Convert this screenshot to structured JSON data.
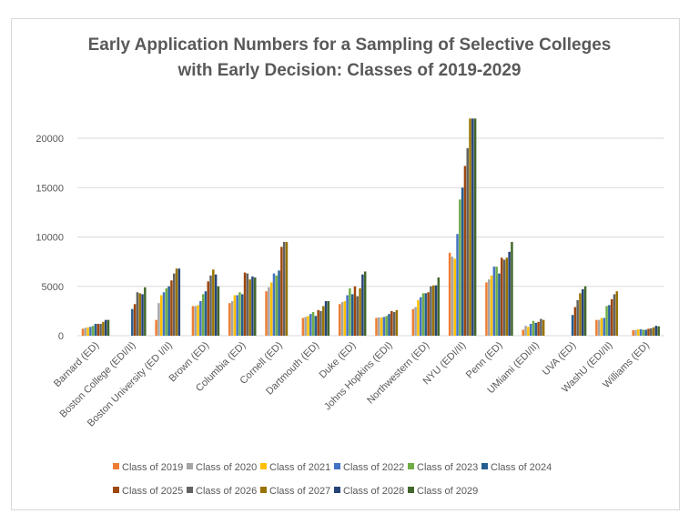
{
  "chart_data": {
    "type": "bar",
    "title_line1": "Early Application Numbers for a Sampling of Selective Colleges",
    "title_line2": "with Early Decision: Classes of 2019-2029",
    "xlabel": "",
    "ylabel": "",
    "ylim": [
      0,
      22000
    ],
    "yticks": [
      0,
      5000,
      10000,
      15000,
      20000
    ],
    "grid": true,
    "legend_position": "bottom",
    "categories": [
      "Barnard (ED)",
      "Boston College (EDI/II)",
      "Boston University (ED I/II)",
      "Brown (ED)",
      "Columbia (ED)",
      "Cornell (ED)",
      "Dartmouth (ED)",
      "Duke (ED)",
      "Johns Hopkins (EDI)",
      "Northwestern (ED)",
      "NYU (EDI/II)",
      "Penn (ED)",
      "UMiami (EDI/II)",
      "UVA (ED)",
      "WashU (EDI/II)",
      "Williams (ED)"
    ],
    "series": [
      {
        "name": "Class of 2019",
        "color": "#ED7D31",
        "values": [
          700,
          null,
          1600,
          3000,
          3300,
          4500,
          1800,
          3200,
          1800,
          2700,
          8400,
          5400,
          600,
          null,
          1600,
          560
        ]
      },
      {
        "name": "Class of 2020",
        "color": "#A5A5A5",
        "values": [
          800,
          null,
          3300,
          3000,
          3500,
          4900,
          1900,
          3400,
          1850,
          2900,
          8000,
          5700,
          1000,
          null,
          1600,
          580
        ]
      },
      {
        "name": "Class of 2021",
        "color": "#FFC000",
        "values": [
          850,
          null,
          4100,
          3100,
          4100,
          5400,
          2000,
          3500,
          1850,
          3600,
          7800,
          6100,
          900,
          null,
          1800,
          650
        ]
      },
      {
        "name": "Class of 2022",
        "color": "#4472C4",
        "values": [
          900,
          null,
          4400,
          3500,
          4100,
          6300,
          2200,
          4100,
          1900,
          3900,
          10300,
          7000,
          1200,
          null,
          1800,
          650
        ]
      },
      {
        "name": "Class of 2023",
        "color": "#70AD47",
        "values": [
          1000,
          null,
          4800,
          4200,
          4400,
          6100,
          2400,
          4800,
          2000,
          4300,
          13800,
          7000,
          1500,
          null,
          3000,
          600
        ]
      },
      {
        "name": "Class of 2024",
        "color": "#255E91",
        "values": [
          1200,
          2700,
          5000,
          4500,
          4200,
          6600,
          2000,
          4200,
          2200,
          4300,
          15000,
          6300,
          1300,
          2100,
          3100,
          600
        ]
      },
      {
        "name": "Class of 2025",
        "color": "#9E480E",
        "values": [
          1200,
          3200,
          5600,
          5500,
          6400,
          9000,
          2600,
          5000,
          2500,
          4400,
          17200,
          7900,
          1400,
          2900,
          3700,
          700
        ]
      },
      {
        "name": "Class of 2026",
        "color": "#636363",
        "values": [
          1200,
          4400,
          6300,
          6100,
          6300,
          9500,
          2500,
          4000,
          2400,
          5000,
          19000,
          7700,
          1700,
          3600,
          4200,
          750
        ]
      },
      {
        "name": "Class of 2027",
        "color": "#997300",
        "values": [
          1400,
          4300,
          6800,
          6700,
          5700,
          9500,
          3000,
          4800,
          2600,
          5100,
          22000,
          7900,
          1600,
          4300,
          4500,
          850
        ]
      },
      {
        "name": "Class of 2028",
        "color": "#264478",
        "values": [
          1600,
          4200,
          6800,
          6200,
          6000,
          null,
          3500,
          6200,
          null,
          5100,
          22000,
          8500,
          null,
          4700,
          null,
          1000
        ]
      },
      {
        "name": "Class of 2029",
        "color": "#43682B",
        "values": [
          1600,
          4900,
          null,
          5000,
          5900,
          null,
          3500,
          6500,
          null,
          5900,
          22000,
          9500,
          null,
          5000,
          null,
          950
        ]
      }
    ]
  }
}
